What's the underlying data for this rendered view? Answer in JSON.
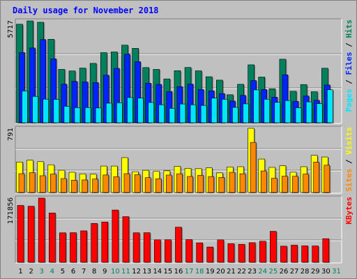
{
  "chart_data": {
    "type": "bar",
    "title": "Daily usage for November 2018",
    "categories": [
      "1",
      "2",
      "3",
      "4",
      "5",
      "6",
      "7",
      "8",
      "9",
      "10",
      "11",
      "12",
      "13",
      "14",
      "15",
      "16",
      "17",
      "18",
      "19",
      "20",
      "21",
      "22",
      "23",
      "24",
      "25",
      "26",
      "27",
      "28",
      "29",
      "30",
      "31"
    ],
    "weekend_days": [
      "3",
      "4",
      "10",
      "11",
      "17",
      "18",
      "24",
      "25",
      "31"
    ],
    "panels": [
      {
        "name": "hits-files-pages",
        "max_label": "5717",
        "ylim": [
          0,
          5717
        ],
        "series": [
          {
            "name": "Hits",
            "color": "#00805c",
            "values": [
              5533,
              5717,
              5643,
              4686,
              2997,
              2910,
              3069,
              3334,
              3938,
              3976,
              4358,
              4178,
              3101,
              2997,
              2461,
              2923,
              3105,
              2917,
              2584,
              2393,
              1573,
              2160,
              3253,
              2565,
              1908,
              3567,
              1770,
              2145,
              1743,
              3061,
              0
            ]
          },
          {
            "name": "Files",
            "color": "#0024ff",
            "values": [
              3945,
              4195,
              4669,
              3590,
              2169,
              2321,
              2290,
              2258,
              2669,
              3055,
              3845,
              3428,
              2221,
              2153,
              1753,
              2027,
              2173,
              1870,
              1791,
              1638,
              1220,
              1536,
              2369,
              1867,
              1437,
              2694,
              1205,
              1502,
              1263,
              2121,
              0
            ]
          },
          {
            "name": "Pages",
            "color": "#00e6ff",
            "values": [
              1785,
              1479,
              1322,
              1313,
              922,
              847,
              850,
              831,
              1098,
              1124,
              1414,
              1383,
              1136,
              1008,
              809,
              1053,
              1008,
              971,
              1384,
              1315,
              862,
              1061,
              1845,
              1317,
              1145,
              1247,
              842,
              1171,
              1071,
              1854,
              0
            ]
          }
        ]
      },
      {
        "name": "visits-sites",
        "max_label": "791",
        "ylim": [
          0,
          791
        ],
        "series": [
          {
            "name": "Visits",
            "color": "#ffff00",
            "values": [
              376,
              398,
              380,
              342,
              275,
              250,
              230,
              226,
              326,
              326,
              430,
              257,
              274,
              262,
              268,
              322,
              298,
              294,
              304,
              242,
              315,
              318,
              791,
              412,
              310,
              330,
              251,
              318,
              458,
              438,
              0
            ]
          },
          {
            "name": "Sites",
            "color": "#ff8800",
            "values": [
              232,
              244,
              207,
              227,
              172,
              152,
              155,
              166,
              216,
              194,
              232,
              219,
              183,
              169,
              215,
              231,
              198,
              212,
              197,
              186,
              249,
              231,
              618,
              266,
              176,
              201,
              200,
              227,
              375,
              337,
              0
            ]
          }
        ]
      },
      {
        "name": "kbytes",
        "max_label": "171856",
        "ylim": [
          0,
          171856
        ],
        "series": [
          {
            "name": "KBytes",
            "color": "#ff0000",
            "values": [
              152148,
              150078,
              171856,
              132054,
              78942,
              79218,
              84200,
              104062,
              107860,
              139918,
              122148,
              78942,
              79218,
              60200,
              60400,
              93960,
              60856,
              51998,
              40866,
              60200,
              49860,
              48076,
              52400,
              56600,
              82876,
              43166,
              45870,
              44000,
              43680,
              63176,
              0
            ]
          }
        ]
      }
    ],
    "side_labels": [
      {
        "panel": "hits-files-pages",
        "parts": [
          {
            "text": "Pages",
            "color": "#00e6ff"
          },
          {
            "text": " / ",
            "color": "#000000"
          },
          {
            "text": "Files",
            "color": "#0024ff"
          },
          {
            "text": " / ",
            "color": "#000000"
          },
          {
            "text": "Hits",
            "color": "#00805c"
          }
        ]
      },
      {
        "panel": "visits-sites",
        "parts": [
          {
            "text": "Sites",
            "color": "#ff8800"
          },
          {
            "text": " / ",
            "color": "#000000"
          },
          {
            "text": "Visits",
            "color": "#ffff00"
          }
        ]
      },
      {
        "panel": "kbytes",
        "parts": [
          {
            "text": "KBytes",
            "color": "#ff0000"
          }
        ]
      }
    ],
    "grid": true,
    "colors": {
      "background": "#c0c0c0",
      "plot_background": "#c0c0c0",
      "title": "#0000ff",
      "weekday_tick": "#000000",
      "weekend_tick": "#00805c"
    }
  }
}
